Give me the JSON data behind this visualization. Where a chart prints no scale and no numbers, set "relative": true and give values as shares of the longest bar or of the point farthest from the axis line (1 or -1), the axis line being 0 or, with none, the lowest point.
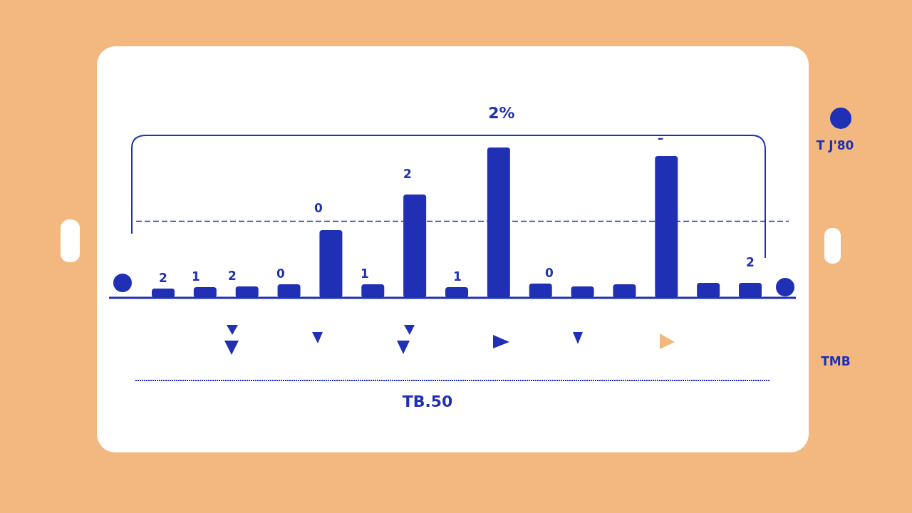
{
  "chart_data": {
    "type": "bar",
    "title": "2%",
    "annotations": [
      "T J'80",
      "TMB",
      "TB.50",
      "2",
      "1",
      "2",
      "0",
      "0",
      "1",
      "2",
      "1",
      "0",
      "–",
      "2"
    ],
    "categories": [
      null,
      null,
      null,
      null,
      null,
      null,
      null,
      null,
      null,
      null,
      null,
      null,
      null,
      null,
      null
    ],
    "values": [
      0.062,
      0.071,
      0.076,
      0.09,
      0.45,
      0.09,
      0.687,
      0.071,
      1,
      0.095,
      0.076,
      0.09,
      0.943,
      0.1,
      0.1
    ],
    "ref_lines": [
      {
        "axis": "y",
        "value": 0.51,
        "color": "#1f30b5",
        "line_style": "dashed"
      }
    ],
    "color": "#1f30b5",
    "relative": true
  }
}
